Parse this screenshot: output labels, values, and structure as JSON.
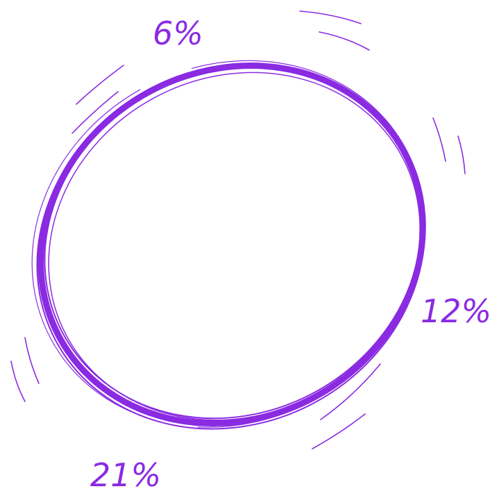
{
  "labels": [
    "6%",
    "12%",
    "21%"
  ]
}
